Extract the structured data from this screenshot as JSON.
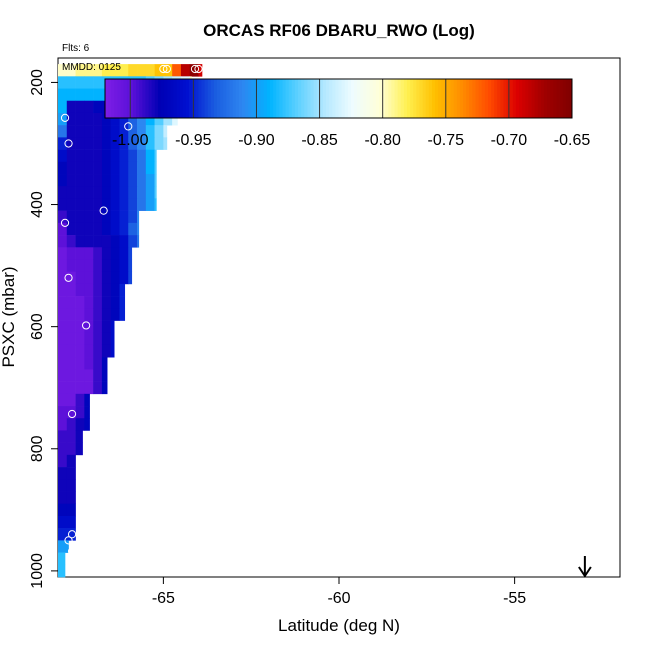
{
  "chart_data": {
    "type": "heatmap",
    "title": "ORCAS RF06 DBARU_RWO (Log)",
    "flights_label": "Flts: 6",
    "date_label": "MMDD: 0125",
    "xlabel": "Latitude (deg N)",
    "ylabel": "PSXC (mbar)",
    "xlim": [
      -68.0,
      -52.0
    ],
    "ylim": [
      1010,
      160
    ],
    "y_reversed": true,
    "x_ticks": [
      "-65",
      "-60",
      "-55"
    ],
    "x_tick_values": [
      -65,
      -60,
      -55
    ],
    "y_ticks": [
      "200",
      "400",
      "600",
      "800",
      "1000"
    ],
    "y_tick_values": [
      200,
      400,
      600,
      800,
      1000
    ],
    "colorbar": {
      "range": [
        -1.02,
        -0.65
      ],
      "ticks": [
        "-1.00",
        "-0.95",
        "-0.90",
        "-0.85",
        "-0.80",
        "-0.75",
        "-0.70",
        "-0.65"
      ],
      "tick_values": [
        -1.0,
        -0.95,
        -0.9,
        -0.85,
        -0.8,
        -0.75,
        -0.7,
        -0.65
      ],
      "colors": [
        "#7e1ee6",
        "#5a10d8",
        "#0000b4",
        "#0010d0",
        "#1a5ce0",
        "#2e86f0",
        "#00b4ff",
        "#5cd0ff",
        "#b4e8ff",
        "#eefcff",
        "#ffffd8",
        "#fff050",
        "#ffc000",
        "#ff8c00",
        "#ff4a00",
        "#dc0000",
        "#a00000",
        "#800000"
      ]
    },
    "pressure_bin_mbar": 20,
    "latitude_bin_deg": 0.25,
    "profile": [
      {
        "p": 180,
        "lat_max": -63.9,
        "values": [
          -0.8,
          -0.8,
          -0.79,
          -0.79,
          -0.79,
          -0.78,
          -0.78,
          -0.78,
          -0.77,
          -0.77,
          -0.77,
          -0.76,
          -0.76,
          -0.72,
          -0.68,
          -0.66,
          -0.69,
          -0.72,
          -0.74
        ]
      },
      {
        "p": 200,
        "lat_max": -64.2,
        "values": [
          -0.88,
          -0.88,
          -0.88,
          -0.88,
          -0.88,
          -0.88,
          -0.88,
          -0.88,
          -0.88,
          -0.88,
          -0.87,
          -0.86,
          -0.85,
          -0.84,
          -0.83,
          -0.8,
          -0.77
        ]
      },
      {
        "p": 220,
        "lat_max": -64.4,
        "values": [
          -0.89,
          -0.89,
          -0.89,
          -0.89,
          -0.89,
          -0.89,
          -0.89,
          -0.89,
          -0.89,
          -0.89,
          -0.88,
          -0.88,
          -0.86,
          -0.85,
          -0.83,
          -0.76
        ]
      },
      {
        "p": 240,
        "lat_max": -64.6,
        "values": [
          -0.89,
          -0.98,
          -0.98,
          -0.98,
          -0.97,
          -0.97,
          -0.96,
          -0.95,
          -0.94,
          -0.92,
          -0.9,
          -0.86,
          -0.84,
          -0.82,
          -0.78
        ]
      },
      {
        "p": 260,
        "lat_max": -64.6,
        "values": [
          -0.9,
          -0.98,
          -0.98,
          -0.98,
          -0.98,
          -0.97,
          -0.96,
          -0.95,
          -0.93,
          -0.91,
          -0.89,
          -0.87,
          -0.85,
          -0.83,
          -0.79
        ]
      },
      {
        "p": 280,
        "lat_max": -64.9,
        "values": [
          -0.92,
          -0.98,
          -0.98,
          -0.98,
          -0.98,
          -0.97,
          -0.96,
          -0.95,
          -0.93,
          -0.91,
          -0.88,
          -0.86,
          -0.84,
          -0.82
        ]
      },
      {
        "p": 300,
        "lat_max": -64.9,
        "values": [
          -0.95,
          -0.98,
          -0.98,
          -0.98,
          -0.98,
          -0.97,
          -0.96,
          -0.95,
          -0.93,
          -0.91,
          -0.88,
          -0.86,
          -0.85,
          -0.83
        ]
      },
      {
        "p": 320,
        "lat_max": -65.2,
        "values": [
          -0.96,
          -0.98,
          -0.98,
          -0.98,
          -0.98,
          -0.97,
          -0.96,
          -0.95,
          -0.94,
          -0.92,
          -0.89,
          -0.87,
          -0.85
        ]
      },
      {
        "p": 340,
        "lat_max": -65.2,
        "values": [
          -0.97,
          -0.98,
          -0.98,
          -0.98,
          -0.98,
          -0.97,
          -0.96,
          -0.95,
          -0.94,
          -0.92,
          -0.89,
          -0.87,
          -0.85
        ]
      },
      {
        "p": 360,
        "lat_max": -65.2,
        "values": [
          -0.97,
          -0.98,
          -0.98,
          -0.98,
          -0.98,
          -0.97,
          -0.96,
          -0.95,
          -0.94,
          -0.92,
          -0.9,
          -0.87,
          -0.85
        ]
      },
      {
        "p": 380,
        "lat_max": -65.2,
        "values": [
          -0.98,
          -0.98,
          -0.98,
          -0.98,
          -0.98,
          -0.97,
          -0.96,
          -0.95,
          -0.94,
          -0.92,
          -0.9,
          -0.87,
          -0.85
        ]
      },
      {
        "p": 400,
        "lat_max": -65.2,
        "values": [
          -0.98,
          -0.98,
          -0.98,
          -0.98,
          -0.98,
          -0.97,
          -0.96,
          -0.95,
          -0.94,
          -0.92,
          -0.9,
          -0.88,
          -0.86
        ]
      },
      {
        "p": 420,
        "lat_max": -65.7,
        "values": [
          -0.99,
          -0.98,
          -0.98,
          -0.98,
          -0.98,
          -0.97,
          -0.96,
          -0.95,
          -0.94,
          -0.91,
          -0.89
        ]
      },
      {
        "p": 440,
        "lat_max": -65.7,
        "values": [
          -1.0,
          -0.98,
          -0.98,
          -0.98,
          -0.98,
          -0.97,
          -0.96,
          -0.95,
          -0.93,
          -0.91,
          -0.89
        ]
      },
      {
        "p": 460,
        "lat_max": -65.7,
        "values": [
          -1.0,
          -0.99,
          -0.98,
          -0.98,
          -0.98,
          -0.98,
          -0.97,
          -0.96,
          -0.94,
          -0.92,
          -0.9
        ]
      },
      {
        "p": 480,
        "lat_max": -65.9,
        "values": [
          -1.01,
          -1.0,
          -1.0,
          -1.0,
          -0.99,
          -0.98,
          -0.97,
          -0.96,
          -0.94,
          -0.91
        ]
      },
      {
        "p": 500,
        "lat_max": -65.9,
        "values": [
          -1.01,
          -1.0,
          -1.0,
          -1.0,
          -0.99,
          -0.98,
          -0.97,
          -0.96,
          -0.94,
          -0.91
        ]
      },
      {
        "p": 520,
        "lat_max": -65.9,
        "values": [
          -1.01,
          -1.01,
          -1.0,
          -1.0,
          -0.99,
          -0.98,
          -0.97,
          -0.96,
          -0.94,
          -0.91
        ]
      },
      {
        "p": 540,
        "lat_max": -66.1,
        "values": [
          -1.01,
          -1.01,
          -1.0,
          -1.0,
          -0.99,
          -0.98,
          -0.97,
          -0.95,
          -0.93
        ]
      },
      {
        "p": 560,
        "lat_max": -66.1,
        "values": [
          -1.01,
          -1.01,
          -1.01,
          -1.0,
          -0.99,
          -0.98,
          -0.97,
          -0.95,
          -0.93
        ]
      },
      {
        "p": 580,
        "lat_max": -66.1,
        "values": [
          -1.01,
          -1.01,
          -1.01,
          -1.0,
          -0.99,
          -0.98,
          -0.97,
          -0.95,
          -0.93
        ]
      },
      {
        "p": 600,
        "lat_max": -66.4,
        "values": [
          -1.01,
          -1.01,
          -1.01,
          -1.0,
          -0.99,
          -0.98,
          -0.96,
          -0.94
        ]
      },
      {
        "p": 620,
        "lat_max": -66.4,
        "values": [
          -1.01,
          -1.01,
          -1.01,
          -1.0,
          -0.99,
          -0.98,
          -0.96,
          -0.94
        ]
      },
      {
        "p": 640,
        "lat_max": -66.4,
        "values": [
          -1.01,
          -1.01,
          -1.01,
          -1.0,
          -0.99,
          -0.98,
          -0.96,
          -0.94
        ]
      },
      {
        "p": 660,
        "lat_max": -66.6,
        "values": [
          -1.01,
          -1.01,
          -1.01,
          -1.0,
          -0.99,
          -0.97,
          -0.95
        ]
      },
      {
        "p": 680,
        "lat_max": -66.6,
        "values": [
          -1.01,
          -1.01,
          -1.01,
          -1.01,
          -0.99,
          -0.97,
          -0.95
        ]
      },
      {
        "p": 700,
        "lat_max": -66.6,
        "values": [
          -1.01,
          -1.01,
          -1.01,
          -1.01,
          -0.99,
          -0.97,
          -0.95
        ]
      },
      {
        "p": 720,
        "lat_max": -67.1,
        "values": [
          -1.01,
          -1.01,
          -0.99,
          -0.97,
          -0.95
        ]
      },
      {
        "p": 740,
        "lat_max": -67.1,
        "values": [
          -1.0,
          -1.0,
          -0.99,
          -0.97,
          -0.95
        ]
      },
      {
        "p": 760,
        "lat_max": -67.1,
        "values": [
          -1.0,
          -0.99,
          -0.98,
          -0.97,
          -0.95
        ]
      },
      {
        "p": 780,
        "lat_max": -67.3,
        "values": [
          -0.99,
          -0.99,
          -0.98,
          -0.96
        ]
      },
      {
        "p": 800,
        "lat_max": -67.3,
        "values": [
          -0.99,
          -0.99,
          -0.98,
          -0.96
        ]
      },
      {
        "p": 820,
        "lat_max": -67.5,
        "values": [
          -0.99,
          -0.98,
          -0.97
        ]
      },
      {
        "p": 840,
        "lat_max": -67.5,
        "values": [
          -0.98,
          -0.98,
          -0.97
        ]
      },
      {
        "p": 860,
        "lat_max": -67.5,
        "values": [
          -0.98,
          -0.98,
          -0.97
        ]
      },
      {
        "p": 880,
        "lat_max": -67.5,
        "values": [
          -0.98,
          -0.98,
          -0.97
        ]
      },
      {
        "p": 900,
        "lat_max": -67.5,
        "values": [
          -0.97,
          -0.97,
          -0.96
        ]
      },
      {
        "p": 920,
        "lat_max": -67.5,
        "values": [
          -0.96,
          -0.96,
          -0.96
        ]
      },
      {
        "p": 940,
        "lat_max": -67.5,
        "values": [
          -0.95,
          -0.95,
          -0.95
        ]
      },
      {
        "p": 960,
        "lat_max": -67.7,
        "values": [
          -0.9,
          -0.9
        ]
      },
      {
        "p": 980,
        "lat_max": -67.8,
        "values": [
          -0.88
        ]
      },
      {
        "p": 1000,
        "lat_max": -67.8,
        "values": [
          -0.88
        ]
      }
    ],
    "points": [
      {
        "lat": -65.0,
        "p": 178
      },
      {
        "lat": -64.9,
        "p": 178
      },
      {
        "lat": -64.1,
        "p": 178
      },
      {
        "lat": -64.0,
        "p": 178
      },
      {
        "lat": -66.0,
        "p": 272
      },
      {
        "lat": -67.8,
        "p": 258
      },
      {
        "lat": -67.7,
        "p": 300
      },
      {
        "lat": -66.7,
        "p": 410
      },
      {
        "lat": -67.8,
        "p": 430
      },
      {
        "lat": -67.7,
        "p": 520
      },
      {
        "lat": -67.2,
        "p": 598
      },
      {
        "lat": -67.6,
        "p": 743
      },
      {
        "lat": -67.6,
        "p": 940
      },
      {
        "lat": -67.7,
        "p": 950
      },
      {
        "lat": -67.6,
        "p": 968
      }
    ],
    "arrow_lat": -53.0
  }
}
